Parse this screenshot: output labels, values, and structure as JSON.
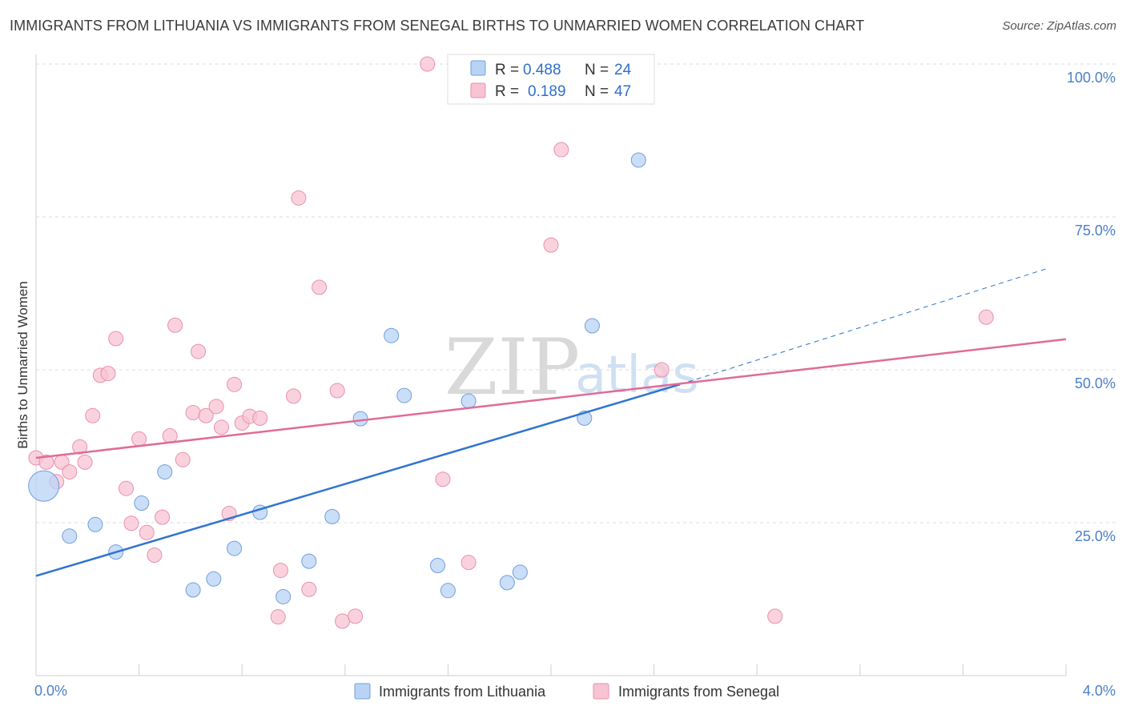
{
  "header": {
    "title": "IMMIGRANTS FROM LITHUANIA VS IMMIGRANTS FROM SENEGAL BIRTHS TO UNMARRIED WOMEN CORRELATION CHART",
    "source": "Source: ZipAtlas.com"
  },
  "watermark": {
    "zip": "ZIP",
    "atlas": "atlas"
  },
  "legend": {
    "lithuania": {
      "r_label": "R =",
      "r_value": "0.488",
      "n_label": "N =",
      "n_value": "24"
    },
    "senegal": {
      "r_label": "R =",
      "r_value": "0.189",
      "n_label": "N =",
      "n_value": "47"
    }
  },
  "colors": {
    "lithuania_fill": "#b9d3f5",
    "lithuania_stroke": "#6f9fdc",
    "lithuania_line": "#2f74d0",
    "senegal_fill": "#f8c3d3",
    "senegal_stroke": "#e890ad",
    "senegal_line": "#e06b96",
    "tick": "#4a7fc8",
    "grid": "#dddddd"
  },
  "chart_data": {
    "type": "scatter",
    "title": "IMMIGRANTS FROM LITHUANIA VS IMMIGRANTS FROM SENEGAL BIRTHS TO UNMARRIED WOMEN CORRELATION CHART",
    "xlabel": "",
    "ylabel": "Births to Unmarried Women",
    "xlim": [
      0.0,
      4.0
    ],
    "ylim": [
      0.0,
      105.0
    ],
    "x_tick_labels": [
      "0.0%",
      "4.0%"
    ],
    "y_ticks": [
      25,
      50,
      75,
      100
    ],
    "y_tick_labels": [
      "25.0%",
      "50.0%",
      "75.0%",
      "100.0%"
    ],
    "series": [
      {
        "name": "Immigrants from Lithuania",
        "r": 0.488,
        "n": 24,
        "trend": {
          "x0": 0.0,
          "y0": 16.3,
          "x1": 2.5,
          "y1": 47.6,
          "dash_to_x": 3.93,
          "dash_to_y": 66.6
        },
        "points": [
          {
            "x": 0.03,
            "y": 31.0,
            "big": true
          },
          {
            "x": 0.13,
            "y": 22.8
          },
          {
            "x": 0.23,
            "y": 24.7
          },
          {
            "x": 0.31,
            "y": 20.2
          },
          {
            "x": 0.41,
            "y": 28.2
          },
          {
            "x": 0.5,
            "y": 33.3
          },
          {
            "x": 0.61,
            "y": 14.0
          },
          {
            "x": 0.69,
            "y": 15.8
          },
          {
            "x": 0.77,
            "y": 20.8
          },
          {
            "x": 0.87,
            "y": 26.7
          },
          {
            "x": 0.96,
            "y": 12.9
          },
          {
            "x": 1.06,
            "y": 18.7
          },
          {
            "x": 1.15,
            "y": 26.0
          },
          {
            "x": 1.26,
            "y": 42.0
          },
          {
            "x": 1.38,
            "y": 55.6
          },
          {
            "x": 1.43,
            "y": 45.8
          },
          {
            "x": 1.56,
            "y": 18.0
          },
          {
            "x": 1.6,
            "y": 13.9
          },
          {
            "x": 1.68,
            "y": 44.9
          },
          {
            "x": 1.83,
            "y": 15.2
          },
          {
            "x": 1.88,
            "y": 16.9
          },
          {
            "x": 2.13,
            "y": 42.1
          },
          {
            "x": 2.16,
            "y": 57.2
          },
          {
            "x": 2.34,
            "y": 84.3
          }
        ]
      },
      {
        "name": "Immigrants from Senegal",
        "r": 0.189,
        "n": 47,
        "trend": {
          "x0": 0.0,
          "y0": 35.6,
          "x1": 4.0,
          "y1": 55.0
        },
        "points": [
          {
            "x": 0.0,
            "y": 35.6
          },
          {
            "x": 0.04,
            "y": 34.9
          },
          {
            "x": 0.08,
            "y": 31.7
          },
          {
            "x": 0.1,
            "y": 34.9
          },
          {
            "x": 0.13,
            "y": 33.3
          },
          {
            "x": 0.17,
            "y": 37.4
          },
          {
            "x": 0.19,
            "y": 34.9
          },
          {
            "x": 0.22,
            "y": 42.5
          },
          {
            "x": 0.25,
            "y": 49.1
          },
          {
            "x": 0.28,
            "y": 49.4
          },
          {
            "x": 0.31,
            "y": 55.1
          },
          {
            "x": 0.35,
            "y": 30.6
          },
          {
            "x": 0.37,
            "y": 24.9
          },
          {
            "x": 0.4,
            "y": 38.7
          },
          {
            "x": 0.43,
            "y": 23.4
          },
          {
            "x": 0.46,
            "y": 19.7
          },
          {
            "x": 0.49,
            "y": 25.9
          },
          {
            "x": 0.52,
            "y": 39.2
          },
          {
            "x": 0.54,
            "y": 57.3
          },
          {
            "x": 0.57,
            "y": 35.3
          },
          {
            "x": 0.61,
            "y": 43.0
          },
          {
            "x": 0.63,
            "y": 53.0
          },
          {
            "x": 0.66,
            "y": 42.5
          },
          {
            "x": 0.7,
            "y": 44.0
          },
          {
            "x": 0.72,
            "y": 40.6
          },
          {
            "x": 0.75,
            "y": 26.5
          },
          {
            "x": 0.77,
            "y": 47.6
          },
          {
            "x": 0.8,
            "y": 41.3
          },
          {
            "x": 0.83,
            "y": 42.4
          },
          {
            "x": 0.87,
            "y": 42.1
          },
          {
            "x": 0.94,
            "y": 9.6
          },
          {
            "x": 0.95,
            "y": 17.2
          },
          {
            "x": 1.0,
            "y": 45.7
          },
          {
            "x": 1.02,
            "y": 78.1
          },
          {
            "x": 1.06,
            "y": 14.1
          },
          {
            "x": 1.1,
            "y": 63.5
          },
          {
            "x": 1.17,
            "y": 46.6
          },
          {
            "x": 1.19,
            "y": 8.9
          },
          {
            "x": 1.24,
            "y": 9.7
          },
          {
            "x": 1.52,
            "y": 100.0
          },
          {
            "x": 1.58,
            "y": 32.1
          },
          {
            "x": 1.68,
            "y": 18.5
          },
          {
            "x": 2.0,
            "y": 70.4
          },
          {
            "x": 2.04,
            "y": 86.0
          },
          {
            "x": 2.43,
            "y": 50.0
          },
          {
            "x": 2.87,
            "y": 9.7
          },
          {
            "x": 3.69,
            "y": 58.6
          }
        ]
      }
    ]
  }
}
